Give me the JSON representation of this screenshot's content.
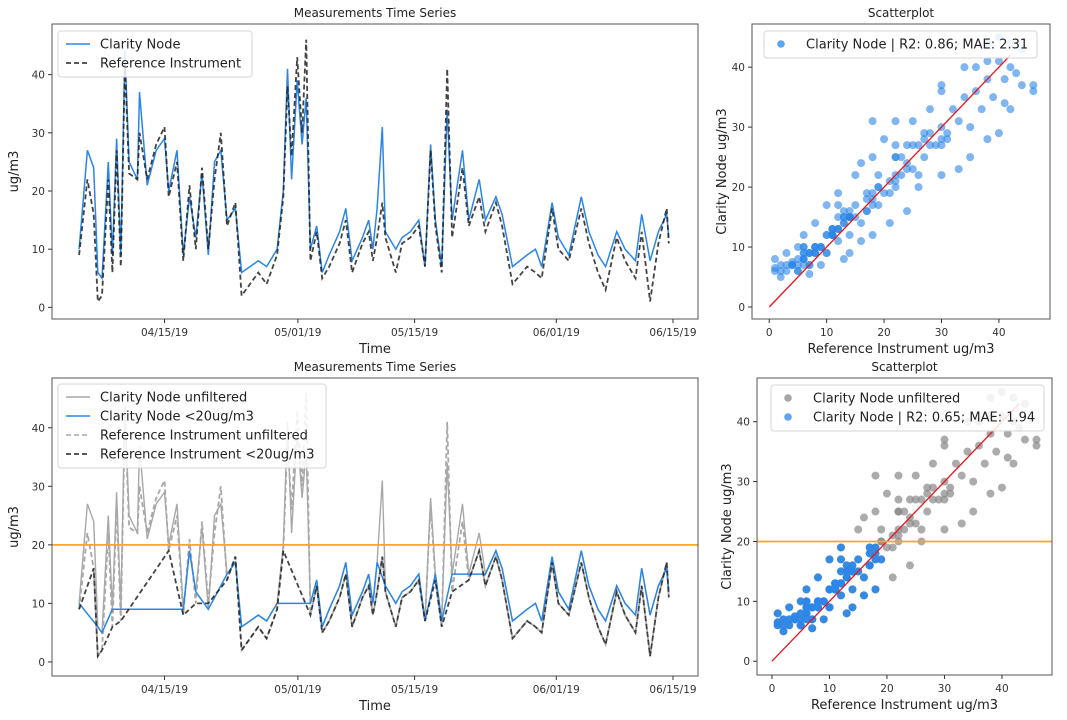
{
  "colors": {
    "clarity": "#2a86e8",
    "reference": "#222222",
    "unfiltered": "#a8a8a8",
    "threshold": "#f5a623",
    "fit": "#e8141c"
  },
  "chart_data": [
    {
      "type": "line",
      "title": "Measurements Time Series",
      "xlabel": "Time",
      "ylabel": "ug/m3",
      "xlim": [
        "2019-04-01T12:00",
        "2019-06-18T00:00"
      ],
      "ylim": [
        -2,
        48.7
      ],
      "grid": false,
      "legend": "upper-left",
      "xticks": [
        {
          "date": "2019-04-15T00:00",
          "label": "04/15/19"
        },
        {
          "date": "2019-05-01T00:00",
          "label": "05/01/19"
        },
        {
          "date": "2019-05-15T00:00",
          "label": "05/15/19"
        },
        {
          "date": "2019-06-01T00:00",
          "label": "06/01/19"
        },
        {
          "date": "2019-06-15T00:00",
          "label": "06/15/19"
        }
      ],
      "yticks": [
        0,
        10,
        20,
        30,
        40
      ],
      "x": [
        "2019-04-04T18:00",
        "2019-04-05T18:00",
        "2019-04-06T12:00",
        "2019-04-07T00:00",
        "2019-04-07T12:00",
        "2019-04-08T06:00",
        "2019-04-08T18:00",
        "2019-04-09T06:00",
        "2019-04-09T18:00",
        "2019-04-10T06:00",
        "2019-04-10T18:00",
        "2019-04-11T18:00",
        "2019-04-12T00:00",
        "2019-04-12T22:00",
        "2019-04-14T00:00",
        "2019-04-15T00:00",
        "2019-04-15T12:00",
        "2019-04-16T12:00",
        "2019-04-17T06:00",
        "2019-04-18T00:00",
        "2019-04-18T18:00",
        "2019-04-19T12:00",
        "2019-04-20T06:00",
        "2019-04-21T00:00",
        "2019-04-21T18:00",
        "2019-04-22T12:00",
        "2019-04-23T12:00",
        "2019-04-24T06:00",
        "2019-04-25T06:00",
        "2019-04-26T06:00",
        "2019-04-27T06:00",
        "2019-04-28T12:00",
        "2019-04-29T06:00",
        "2019-04-29T18:00",
        "2019-04-30T06:00",
        "2019-04-30T22:00",
        "2019-05-01T12:00",
        "2019-05-02T00:00",
        "2019-05-02T12:00",
        "2019-05-03T06:00",
        "2019-05-03T22:00",
        "2019-05-04T18:00",
        "2019-05-06T00:00",
        "2019-05-06T18:00",
        "2019-05-07T12:00",
        "2019-05-08T18:00",
        "2019-05-09T12:00",
        "2019-05-10T00:00",
        "2019-05-10T12:00",
        "2019-05-11T03:00",
        "2019-05-11T12:00",
        "2019-05-12T18:00",
        "2019-05-13T12:00",
        "2019-05-14T12:00",
        "2019-05-15T12:00",
        "2019-05-16T06:00",
        "2019-05-16T22:00",
        "2019-05-17T12:00",
        "2019-05-18T06:00",
        "2019-05-18T22:00",
        "2019-05-19T12:00",
        "2019-05-20T18:00",
        "2019-05-21T12:00",
        "2019-05-22T18:00",
        "2019-05-23T12:00",
        "2019-05-24T18:00",
        "2019-05-25T12:00",
        "2019-05-26T18:00",
        "2019-05-28T12:00",
        "2019-05-29T12:00",
        "2019-05-30T06:00",
        "2019-05-31T12:00",
        "2019-06-01T06:00",
        "2019-06-02T12:00",
        "2019-06-04T00:00",
        "2019-06-04T22:00",
        "2019-06-06T00:00",
        "2019-06-06T22:00",
        "2019-06-08T06:00",
        "2019-06-09T06:00",
        "2019-06-10T12:00",
        "2019-06-11T06:00",
        "2019-06-12T06:00",
        "2019-06-13T06:00",
        "2019-06-14T06:00",
        "2019-06-14T12:00"
      ],
      "series": [
        {
          "name": "Clarity Node",
          "style": "solid",
          "values": [
            10,
            27,
            24,
            6,
            5,
            25,
            9,
            29,
            9,
            44,
            25,
            22,
            37,
            21,
            27,
            29,
            20,
            27,
            9,
            19,
            12,
            23,
            9,
            25,
            27,
            15,
            17,
            6,
            7,
            8,
            7,
            10,
            20,
            41,
            22,
            39,
            28,
            36,
            10,
            14,
            6,
            9,
            13,
            17,
            8,
            12,
            15,
            10,
            17,
            31,
            13,
            10,
            12,
            13,
            15,
            7,
            28,
            15,
            7,
            34,
            15,
            27,
            15,
            22,
            15,
            19,
            16,
            7,
            9,
            10,
            7,
            18,
            12,
            9,
            19,
            13,
            9,
            7,
            13,
            10,
            8,
            16,
            8,
            13,
            16,
            12
          ]
        },
        {
          "name": "Reference Instrument",
          "style": "dashed",
          "values": [
            9,
            22,
            16,
            1,
            2,
            22,
            6,
            27,
            7,
            42,
            23,
            22,
            30,
            22,
            28,
            31,
            19,
            25,
            8,
            21,
            10,
            24,
            10,
            22,
            30,
            14,
            18,
            2,
            4,
            6,
            4,
            9,
            19,
            38,
            26,
            43,
            30,
            46,
            8,
            13,
            5,
            7,
            11,
            15,
            6,
            11,
            13,
            8,
            12,
            18,
            12,
            6,
            11,
            12,
            14,
            7,
            27,
            14,
            6,
            41,
            12,
            24,
            14,
            19,
            13,
            18,
            14,
            4,
            7,
            6,
            5,
            17,
            10,
            8,
            17,
            11,
            6,
            3,
            12,
            8,
            5,
            13,
            1,
            11,
            17,
            11
          ]
        }
      ]
    },
    {
      "type": "scatter",
      "title": "Scatterplot",
      "xlabel": "Reference Instrument ug/m3",
      "ylabel": "Clarity Node ug/m3",
      "xlim": [
        -3,
        48.9
      ],
      "ylim": [
        -2,
        47.2
      ],
      "xticks": [
        0,
        10,
        20,
        30,
        40
      ],
      "yticks": [
        0,
        10,
        20,
        30,
        40
      ],
      "legend": "upper-center",
      "series": [
        {
          "name": "Clarity Node | R2: 0.86; MAE: 2.31"
        }
      ],
      "fit_line": [
        [
          0,
          0
        ],
        [
          42,
          42
        ]
      ],
      "points": [
        [
          1,
          6.5
        ],
        [
          2,
          7
        ],
        [
          3,
          6
        ],
        [
          4,
          7.5
        ],
        [
          5,
          6
        ],
        [
          6,
          8
        ],
        [
          7,
          7
        ],
        [
          8,
          9
        ],
        [
          9,
          10
        ],
        [
          10,
          9
        ],
        [
          11,
          12
        ],
        [
          12,
          11
        ],
        [
          13,
          14
        ],
        [
          14,
          12
        ],
        [
          15,
          15
        ],
        [
          16,
          14
        ],
        [
          17,
          16
        ],
        [
          18,
          18
        ],
        [
          19,
          17
        ],
        [
          20,
          19
        ],
        [
          21,
          21
        ],
        [
          22,
          20
        ],
        [
          23,
          22
        ],
        [
          24,
          24
        ],
        [
          25,
          23
        ],
        [
          26,
          27
        ],
        [
          27,
          25
        ],
        [
          28,
          29
        ],
        [
          29,
          27
        ],
        [
          30,
          30
        ],
        [
          31,
          28
        ],
        [
          32,
          33
        ],
        [
          33,
          31
        ],
        [
          34,
          35
        ],
        [
          35,
          30
        ],
        [
          36,
          36
        ],
        [
          37,
          33
        ],
        [
          38,
          38
        ],
        [
          39,
          35
        ],
        [
          40,
          41
        ],
        [
          41,
          38
        ],
        [
          42,
          40
        ],
        [
          44,
          37
        ],
        [
          46,
          37
        ],
        [
          5,
          10
        ],
        [
          8,
          14
        ],
        [
          10,
          17
        ],
        [
          12,
          19
        ],
        [
          15,
          22
        ],
        [
          18,
          25
        ],
        [
          20,
          28
        ],
        [
          22,
          31
        ],
        [
          7,
          5.5
        ],
        [
          14,
          9
        ],
        [
          18,
          12
        ],
        [
          21,
          14
        ],
        [
          24,
          16
        ],
        [
          26,
          20
        ],
        [
          30,
          22
        ],
        [
          33,
          23
        ],
        [
          35,
          25
        ],
        [
          38,
          28
        ],
        [
          40,
          29
        ],
        [
          42,
          33
        ],
        [
          3,
          9
        ],
        [
          6,
          12
        ],
        [
          9,
          7
        ],
        [
          13,
          8
        ],
        [
          16,
          11
        ],
        [
          28,
          33
        ],
        [
          25,
          31
        ],
        [
          30,
          36
        ],
        [
          34,
          40
        ],
        [
          40,
          45
        ],
        [
          38,
          44
        ],
        [
          44,
          43
        ],
        [
          36,
          40
        ]
      ]
    },
    {
      "type": "line",
      "title": "Measurements Time Series",
      "xlabel": "Time",
      "ylabel": "ug/m3",
      "ylim": [
        -2.4,
        48.5
      ],
      "threshold": 20,
      "legend": "upper-left",
      "series": [
        {
          "name": "Clarity Node unfiltered",
          "style": "solid"
        },
        {
          "name": "Clarity Node <20ug/m3",
          "style": "solid"
        },
        {
          "name": "Reference Instrument unfiltered",
          "style": "dashed"
        },
        {
          "name": "Reference Instrument <20ug/m3",
          "style": "dashed"
        }
      ]
    },
    {
      "type": "scatter",
      "title": "Scatterplot",
      "xlabel": "Reference Instrument ug/m3",
      "ylabel": "Clarity Node ug/m3",
      "xlim": [
        -2.6,
        48.7
      ],
      "ylim": [
        -2.3,
        47.3
      ],
      "xticks": [
        0,
        10,
        20,
        30,
        40
      ],
      "yticks": [
        0,
        10,
        20,
        30,
        40
      ],
      "threshold": 20,
      "legend": "upper-center",
      "series": [
        {
          "name": "Clarity Node unfiltered"
        },
        {
          "name": "Clarity Node | R2: 0.65; MAE: 1.94"
        }
      ],
      "fit_line": [
        [
          0,
          0
        ],
        [
          43,
          43
        ]
      ]
    }
  ]
}
